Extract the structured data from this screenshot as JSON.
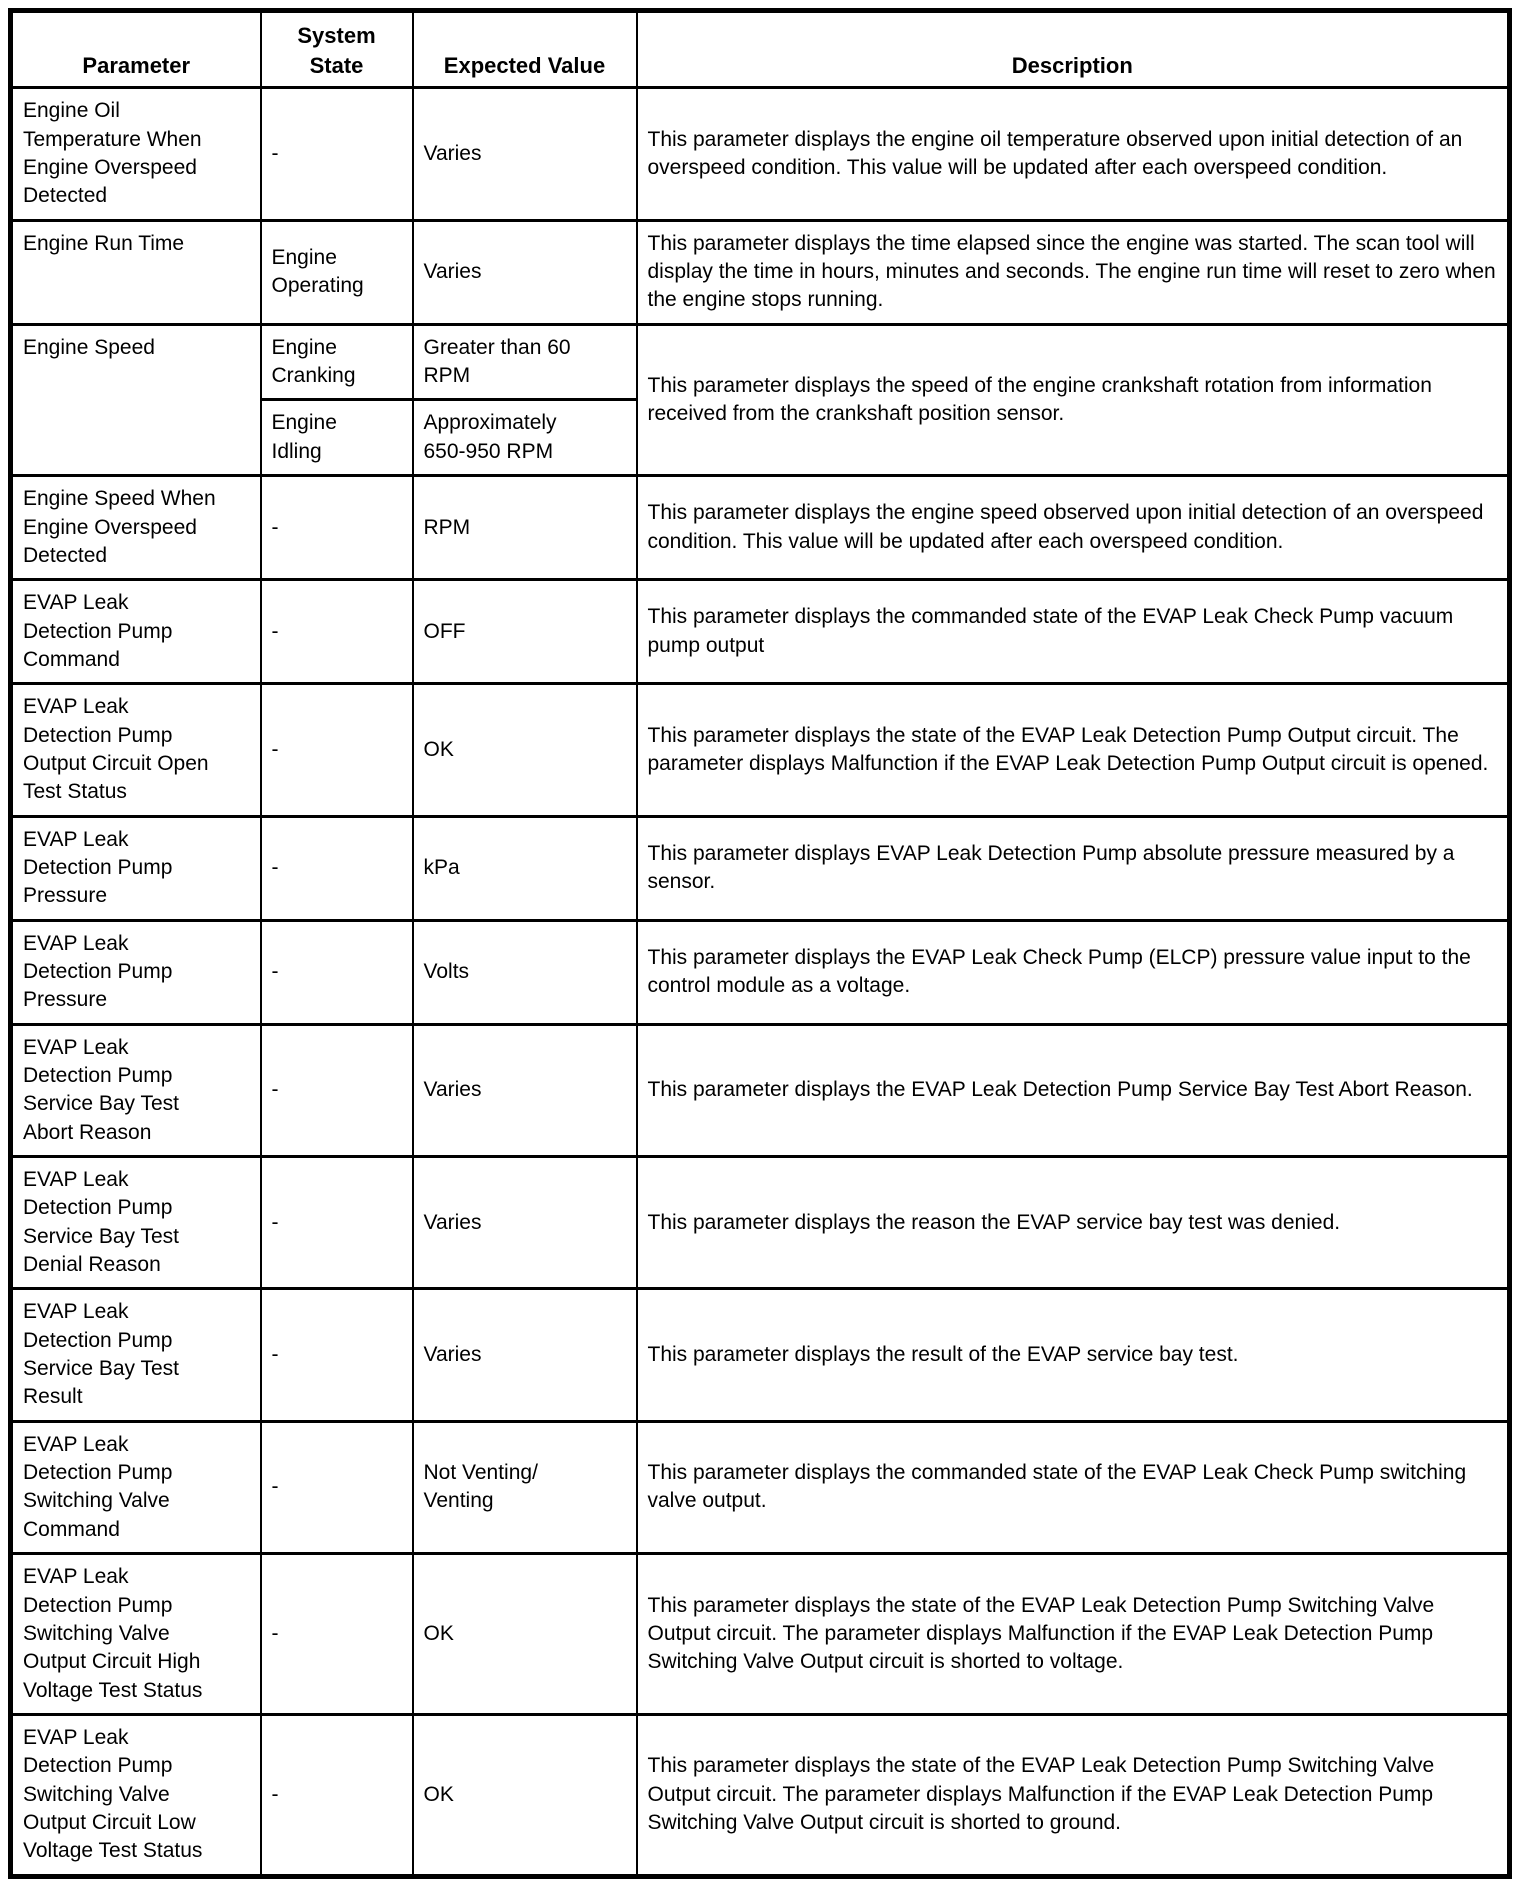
{
  "table": {
    "headers": {
      "parameter": "Parameter",
      "system_state": "System\nState",
      "expected_value": "Expected Value",
      "description": "Description"
    },
    "rows": [
      {
        "parameter": "Engine Oil\nTemperature When\nEngine Overspeed\nDetected",
        "states": [
          {
            "state": "-",
            "value": "Varies"
          }
        ],
        "description": "This parameter displays the engine oil temperature observed upon initial detection of an overspeed condition. This value will be updated after each overspeed condition."
      },
      {
        "parameter": "Engine Run Time",
        "states": [
          {
            "state": "Engine\nOperating",
            "value": "Varies"
          }
        ],
        "description": "This parameter displays the time elapsed since the engine was started. The scan tool will display the time in hours, minutes and seconds. The engine run time will reset to zero when the engine stops running."
      },
      {
        "parameter": "Engine Speed",
        "states": [
          {
            "state": "Engine\nCranking",
            "value": "Greater than 60\nRPM"
          },
          {
            "state": "Engine\nIdling",
            "value": "Approximately\n650-950 RPM"
          }
        ],
        "description": "This parameter displays the speed of the engine crankshaft rotation from information received from the crankshaft position sensor."
      },
      {
        "parameter": "Engine Speed When\nEngine Overspeed\nDetected",
        "states": [
          {
            "state": "-",
            "value": "RPM"
          }
        ],
        "description": "This parameter displays the engine speed observed upon initial detection of an overspeed condition. This value will be updated after each overspeed condition."
      },
      {
        "parameter": "EVAP Leak\nDetection Pump\nCommand",
        "states": [
          {
            "state": "-",
            "value": "OFF"
          }
        ],
        "description": "This parameter displays the commanded state of the EVAP Leak Check Pump vacuum pump output"
      },
      {
        "parameter": "EVAP Leak\nDetection Pump\nOutput Circuit Open\nTest Status",
        "states": [
          {
            "state": "-",
            "value": "OK"
          }
        ],
        "description": "This parameter displays the state of the EVAP Leak Detection Pump Output circuit. The parameter displays Malfunction if the EVAP Leak Detection Pump Output circuit is opened."
      },
      {
        "parameter": "EVAP Leak\nDetection Pump\nPressure",
        "states": [
          {
            "state": "-",
            "value": "kPa"
          }
        ],
        "description": "This parameter displays EVAP Leak Detection Pump absolute pressure measured by a sensor."
      },
      {
        "parameter": "EVAP Leak\nDetection Pump\nPressure",
        "states": [
          {
            "state": "-",
            "value": "Volts"
          }
        ],
        "description": "This parameter displays the EVAP Leak Check Pump (ELCP) pressure value input to the control module as a voltage."
      },
      {
        "parameter": "EVAP Leak\nDetection Pump\nService Bay Test\nAbort Reason",
        "states": [
          {
            "state": "-",
            "value": "Varies"
          }
        ],
        "description": "This parameter displays the EVAP Leak Detection Pump Service Bay Test Abort Reason."
      },
      {
        "parameter": "EVAP Leak\nDetection Pump\nService Bay Test\nDenial Reason",
        "states": [
          {
            "state": "-",
            "value": "Varies"
          }
        ],
        "description": "This parameter displays the reason the EVAP service bay test was denied."
      },
      {
        "parameter": "EVAP Leak\nDetection Pump\nService Bay Test\nResult",
        "states": [
          {
            "state": "-",
            "value": "Varies"
          }
        ],
        "description": "This parameter displays the result of the EVAP service bay test."
      },
      {
        "parameter": "EVAP Leak\nDetection Pump\nSwitching Valve\nCommand",
        "states": [
          {
            "state": "-",
            "value": "Not Venting/\nVenting"
          }
        ],
        "description": "This parameter displays the commanded state of the EVAP Leak Check Pump switching valve output."
      },
      {
        "parameter": "EVAP Leak\nDetection Pump\nSwitching Valve\nOutput Circuit High\nVoltage Test Status",
        "states": [
          {
            "state": "-",
            "value": "OK"
          }
        ],
        "description": "This parameter displays the state of the EVAP Leak Detection Pump Switching Valve Output circuit. The parameter displays Malfunction if the EVAP Leak Detection Pump Switching Valve Output circuit is shorted to voltage."
      },
      {
        "parameter": "EVAP Leak\nDetection Pump\nSwitching Valve\nOutput Circuit Low\nVoltage Test Status",
        "states": [
          {
            "state": "-",
            "value": "OK"
          }
        ],
        "description": "This parameter displays the state of the EVAP Leak Detection Pump Switching Valve Output circuit. The parameter displays Malfunction if the EVAP Leak Detection Pump Switching Valve Output circuit is shorted to ground."
      }
    ]
  }
}
